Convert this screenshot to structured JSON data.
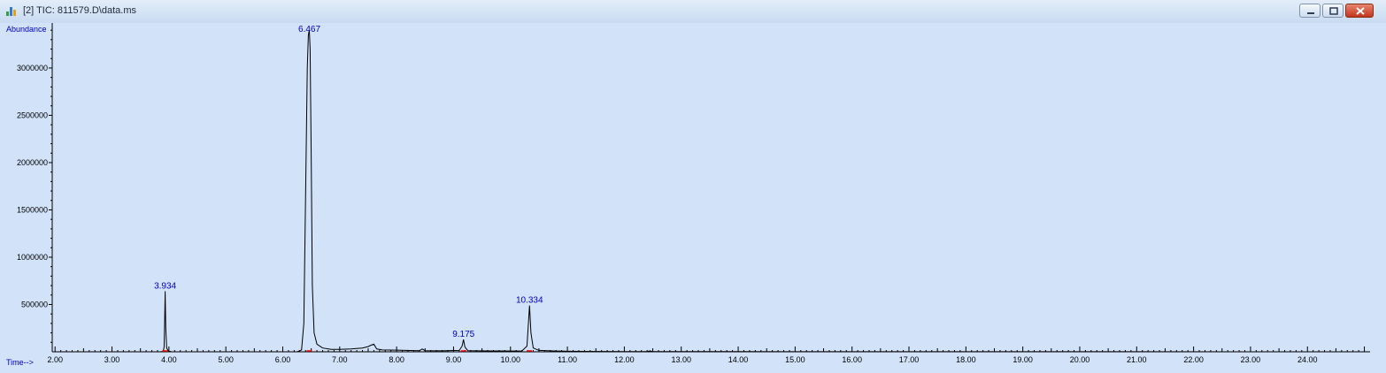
{
  "window": {
    "title": "[2] TIC: 811579.D\\data.ms",
    "icon": "chromatogram-icon"
  },
  "colors": {
    "plot_background": "#d1e2f9",
    "trace": "#000000",
    "labels": "#0000cc",
    "baseline_marker": "#ff0000"
  },
  "chart_data": {
    "type": "line",
    "title": "",
    "xlabel": "Time-->",
    "ylabel": "Abundance",
    "xlim": [
      1.95,
      25.1
    ],
    "ylim": [
      0,
      3420000
    ],
    "x_ticks": [
      2,
      3,
      4,
      5,
      6,
      7,
      8,
      9,
      10,
      11,
      12,
      13,
      14,
      15,
      16,
      17,
      18,
      19,
      20,
      21,
      22,
      23,
      24
    ],
    "x_tick_labels": [
      "2.00",
      "3.00",
      "4.00",
      "5.00",
      "6.00",
      "7.00",
      "8.00",
      "9.00",
      "10.00",
      "11.00",
      "12.00",
      "13.00",
      "14.00",
      "15.00",
      "16.00",
      "17.00",
      "18.00",
      "19.00",
      "20.00",
      "21.00",
      "22.00",
      "23.00",
      "24.00"
    ],
    "y_ticks": [
      500000,
      1000000,
      1500000,
      2000000,
      2500000,
      3000000
    ],
    "y_tick_labels": [
      "500000",
      "1000000",
      "1500000",
      "2000000",
      "2500000",
      "3000000"
    ],
    "grid": false,
    "series": [
      {
        "x": [
          1.95,
          3.85,
          3.9,
          3.915,
          3.925,
          3.934,
          3.945,
          3.96,
          3.99,
          4.05,
          6.25,
          6.33,
          6.37,
          6.4,
          6.43,
          6.45,
          6.467,
          6.48,
          6.5,
          6.52,
          6.55,
          6.6,
          6.7,
          6.85,
          7.0,
          7.2,
          7.3,
          7.4,
          7.5,
          7.55,
          7.6,
          7.65,
          7.75,
          8.0,
          8.4,
          8.45,
          8.5,
          8.8,
          9.1,
          9.15,
          9.175,
          9.2,
          9.25,
          9.6,
          10.2,
          10.29,
          10.31,
          10.334,
          10.36,
          10.4,
          10.5,
          10.8,
          11.2,
          12.0,
          12.4,
          12.45,
          12.5,
          14.0,
          16.0,
          20.0,
          25.1
        ],
        "y": [
          0,
          0,
          5000,
          50000,
          300000,
          640000,
          250000,
          40000,
          8000,
          0,
          0,
          20000,
          300000,
          1600000,
          3000000,
          3350000,
          3400000,
          3200000,
          2000000,
          700000,
          200000,
          80000,
          40000,
          25000,
          25000,
          30000,
          35000,
          40000,
          55000,
          70000,
          80000,
          30000,
          20000,
          18000,
          12000,
          30000,
          12000,
          10000,
          15000,
          60000,
          130000,
          50000,
          12000,
          9000,
          8000,
          60000,
          250000,
          490000,
          200000,
          40000,
          15000,
          8000,
          5000,
          3000,
          3000,
          10000,
          2000,
          1500,
          1000,
          500,
          300
        ]
      }
    ],
    "peaks": [
      {
        "rt": 3.934,
        "label": "3.934",
        "height": 640000
      },
      {
        "rt": 6.467,
        "label": "6.467",
        "height": 3400000
      },
      {
        "rt": 9.175,
        "label": "9.175",
        "height": 130000
      },
      {
        "rt": 10.334,
        "label": "10.334",
        "height": 490000
      }
    ]
  }
}
